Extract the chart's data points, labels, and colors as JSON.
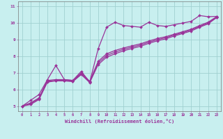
{
  "title": "",
  "xlabel": "Windchill (Refroidissement éolien,°C)",
  "ylabel": "",
  "bg_color": "#c8efef",
  "grid_color": "#a0d0d0",
  "line_color": "#993399",
  "marker": "D",
  "markersize": 2.0,
  "linewidth": 0.9,
  "xlim": [
    -0.5,
    23.5
  ],
  "ylim": [
    4.7,
    11.3
  ],
  "xticks": [
    0,
    1,
    2,
    3,
    4,
    5,
    6,
    7,
    8,
    9,
    10,
    11,
    12,
    13,
    14,
    15,
    16,
    17,
    18,
    19,
    20,
    21,
    22,
    23
  ],
  "yticks": [
    5,
    6,
    7,
    8,
    9,
    10,
    11
  ],
  "line1_x": [
    0,
    1,
    2,
    3,
    4,
    5,
    6,
    7,
    8,
    9,
    10,
    11,
    12,
    13,
    14,
    15,
    16,
    17,
    18,
    19,
    20,
    21,
    22,
    23
  ],
  "line1_y": [
    5.0,
    5.35,
    5.7,
    6.6,
    7.45,
    6.6,
    6.55,
    7.1,
    6.45,
    8.45,
    9.75,
    10.05,
    9.85,
    9.8,
    9.75,
    10.05,
    9.85,
    9.8,
    9.9,
    10.0,
    10.1,
    10.45,
    10.38,
    10.4
  ],
  "line2_x": [
    0,
    1,
    2,
    3,
    4,
    5,
    6,
    7,
    8,
    9,
    10,
    11,
    12,
    13,
    14,
    15,
    16,
    17,
    18,
    19,
    20,
    21,
    22,
    23
  ],
  "line2_y": [
    5.0,
    5.2,
    5.5,
    6.55,
    6.6,
    6.6,
    6.55,
    7.0,
    6.5,
    7.7,
    8.15,
    8.35,
    8.5,
    8.63,
    8.75,
    8.92,
    9.07,
    9.18,
    9.33,
    9.48,
    9.63,
    9.85,
    10.05,
    10.38
  ],
  "line3_x": [
    0,
    1,
    2,
    3,
    4,
    5,
    6,
    7,
    8,
    9,
    10,
    11,
    12,
    13,
    14,
    15,
    16,
    17,
    18,
    19,
    20,
    21,
    22,
    23
  ],
  "line3_y": [
    5.0,
    5.15,
    5.45,
    6.5,
    6.55,
    6.55,
    6.5,
    6.95,
    6.45,
    7.6,
    8.05,
    8.25,
    8.42,
    8.55,
    8.68,
    8.85,
    9.0,
    9.12,
    9.28,
    9.42,
    9.58,
    9.8,
    10.0,
    10.35
  ],
  "line4_x": [
    0,
    1,
    2,
    3,
    4,
    5,
    6,
    7,
    8,
    9,
    10,
    11,
    12,
    13,
    14,
    15,
    16,
    17,
    18,
    19,
    20,
    21,
    22,
    23
  ],
  "line4_y": [
    5.0,
    5.1,
    5.4,
    6.45,
    6.52,
    6.52,
    6.48,
    6.9,
    6.42,
    7.5,
    7.95,
    8.15,
    8.33,
    8.47,
    8.6,
    8.78,
    8.93,
    9.05,
    9.22,
    9.37,
    9.52,
    9.75,
    9.95,
    10.32
  ]
}
